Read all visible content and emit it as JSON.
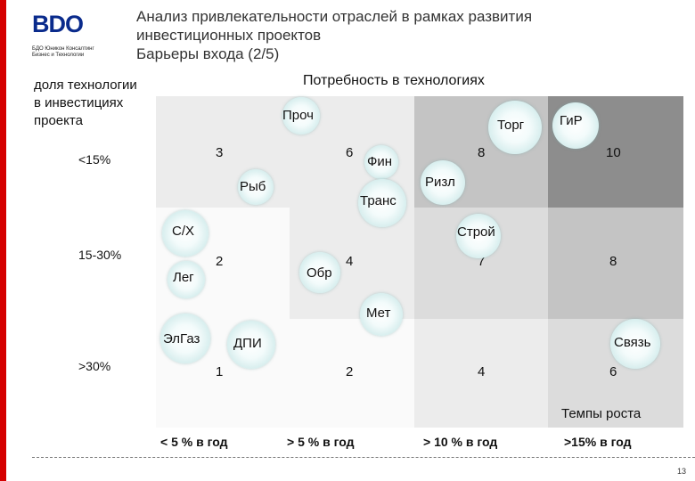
{
  "header": {
    "logo_text": "BDO",
    "logo_sub_line1": "БДО Юникон Консалтинг",
    "logo_sub_line2": "Бизнес и Технологии",
    "title_line1": "Анализ привлекательности отраслей в рамках развития",
    "title_line2": "инвестиционных проектов",
    "subtitle": "Барьеры входа (2/5)"
  },
  "axes": {
    "column_header": "Потребность в технологиях",
    "row_header_line1": "доля технологии",
    "row_header_line2": "в инвестициях",
    "row_header_line3": "проекта",
    "rows": [
      "<15%",
      "15-30%",
      ">30%"
    ],
    "columns": [
      "< 5 % в год",
      "> 5 % в год",
      "> 10 % в год",
      ">15% в год"
    ],
    "growth_label": "Темпы роста"
  },
  "matrix": {
    "row1": [
      "3",
      "6",
      "8",
      "10"
    ],
    "row2": [
      "2",
      "4",
      "7",
      "8"
    ],
    "row3": [
      "1",
      "2",
      "4",
      "6"
    ],
    "colors": {
      "light": "#f2f2f2",
      "white": "#fafafa",
      "mid": "#dcdcdc",
      "darker": "#c6c6c6",
      "dark": "#8f8f8f",
      "grey": "#a8a8a8"
    }
  },
  "industries": {
    "proch": "Проч",
    "torg": "Торг",
    "gir": "ГиР",
    "fin": "Фин",
    "ryb": "Рыб",
    "rizl": "Ризл",
    "trans": "Транс",
    "sh": "С/Х",
    "stroy": "Строй",
    "leg": "Лег",
    "obr": "Обр",
    "met": "Мет",
    "elgaz": "ЭлГаз",
    "dpi": "ДПИ",
    "svyaz": "Связь"
  },
  "footer": {
    "page_number": "13"
  }
}
